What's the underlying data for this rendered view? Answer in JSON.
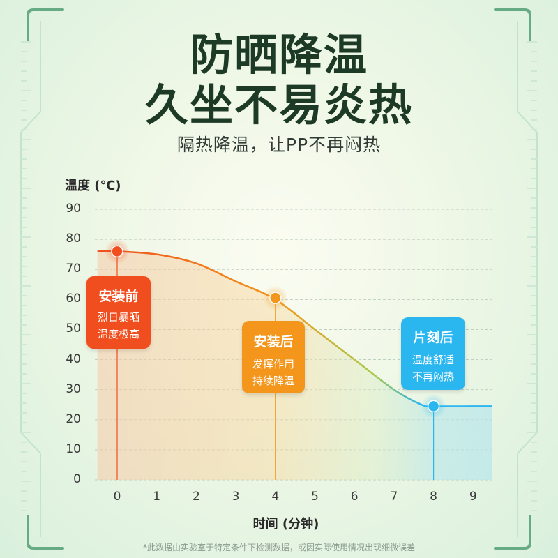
{
  "header": {
    "title_line1": "防晒降温",
    "title_line2": "久坐不易炎热",
    "subtitle": "隔热降温，让PP不再闷热"
  },
  "chart_data": {
    "type": "line",
    "ylabel": "温度 (℃)",
    "xlabel": "时间 (分钟)",
    "xlim": [
      -0.5,
      9.5
    ],
    "ylim": [
      0,
      90
    ],
    "x_ticks": [
      "0",
      "1",
      "2",
      "3",
      "4",
      "5",
      "6",
      "7",
      "8",
      "9"
    ],
    "y_ticks": [
      "0",
      "10",
      "20",
      "30",
      "40",
      "50",
      "60",
      "70",
      "80",
      "90"
    ],
    "grid": "horizontal-dashed",
    "series": [
      {
        "x": [
          -0.5,
          0,
          1,
          2,
          3,
          4,
          5,
          6,
          7,
          7.7,
          8,
          9,
          9.5
        ],
        "y": [
          76,
          76,
          75,
          72,
          66,
          60,
          50,
          40,
          30,
          25,
          24.5,
          24.5,
          24.5
        ]
      }
    ],
    "markers": [
      {
        "x": 0,
        "y": 76,
        "color": "#f04e1e"
      },
      {
        "x": 4,
        "y": 60.5,
        "color": "#f3961b"
      },
      {
        "x": 8,
        "y": 24.5,
        "color": "#2ab6ef"
      }
    ],
    "annotations": [
      {
        "title": "安装前",
        "line1": "烈日暴晒",
        "line2": "温度极高",
        "color": "#f04e1e"
      },
      {
        "title": "安装后",
        "line1": "发挥作用",
        "line2": "持续降温",
        "color": "#f3961b"
      },
      {
        "title": "片刻后",
        "line1": "温度舒适",
        "line2": "不再闷热",
        "color": "#2ab6ef"
      }
    ]
  },
  "footnote": "*此数据由实验室于特定条件下检测数据，或因实际使用情况出现细微误差",
  "colors": {
    "frame": "#5aa37a",
    "title": "#1c3a25",
    "orange_red": "#f04e1e",
    "orange": "#f3961b",
    "blue": "#2ab6ef"
  }
}
